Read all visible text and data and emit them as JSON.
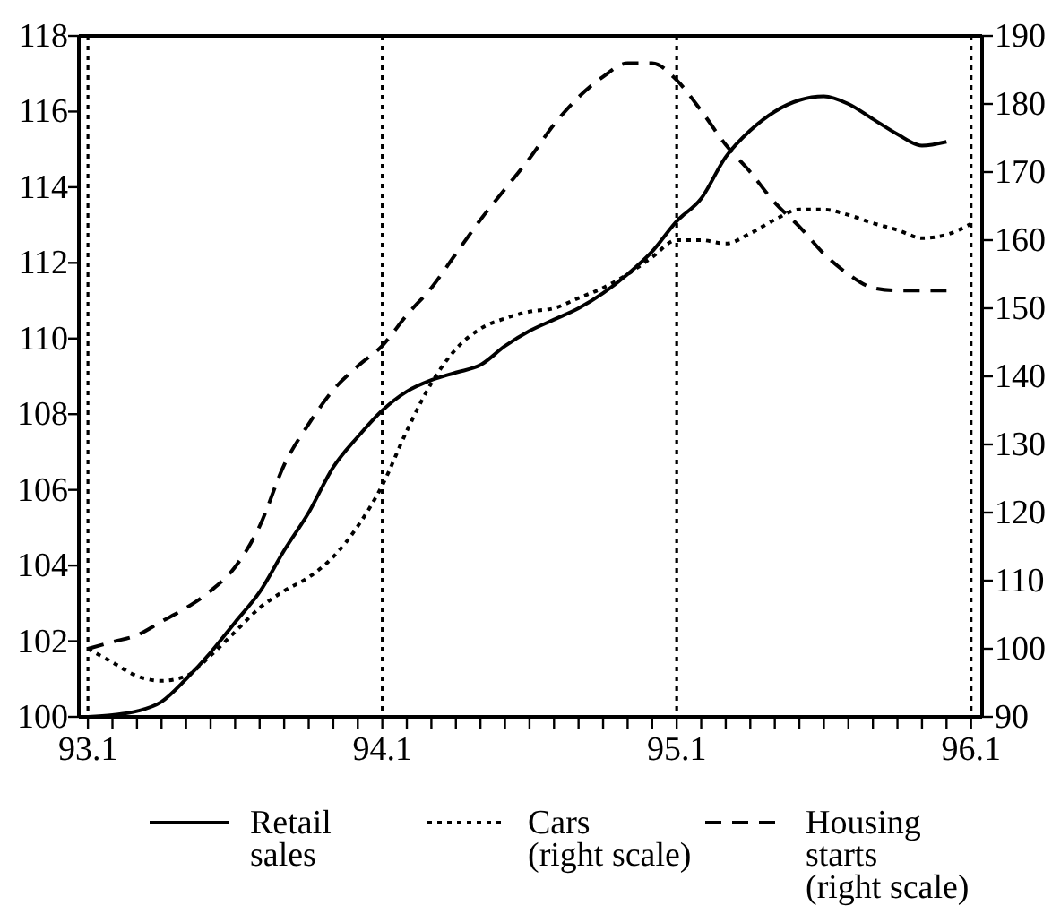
{
  "chart_data": {
    "type": "line",
    "categories": [
      "93.1",
      null,
      null,
      null,
      null,
      null,
      null,
      null,
      null,
      null,
      null,
      null,
      "94.1",
      null,
      null,
      null,
      null,
      null,
      null,
      null,
      null,
      null,
      null,
      null,
      "95.1",
      null,
      null,
      null,
      null,
      null,
      null,
      null,
      null,
      null,
      null,
      null,
      "96.1"
    ],
    "series": [
      {
        "name": "Retail sales",
        "color": "#000000",
        "line_style": "solid",
        "values": [
          100.0,
          100.05,
          100.15,
          100.4,
          101.0,
          101.7,
          102.5,
          103.3,
          104.4,
          105.4,
          106.6,
          107.4,
          108.1,
          108.6,
          108.9,
          109.1,
          109.3,
          109.8,
          110.2,
          110.5,
          110.8,
          111.2,
          111.7,
          112.3,
          113.1,
          113.7,
          114.8,
          115.5,
          116.0,
          116.3,
          116.4,
          116.2,
          115.8,
          115.4,
          115.1,
          115.2,
          null
        ]
      },
      {
        "name": "Cars (right scale)",
        "color": "#000000",
        "line_style": "dotted",
        "axis": "y2",
        "values": [
          100,
          98,
          96,
          95.3,
          96,
          99,
          102.5,
          106,
          108.5,
          110.5,
          113.5,
          118,
          124,
          132,
          139,
          144,
          147,
          148.5,
          149.5,
          150,
          151.5,
          153,
          155,
          157.5,
          160,
          160,
          159.5,
          161,
          163,
          164.5,
          164.5,
          163.7,
          162.5,
          161.5,
          160.3,
          160.8,
          162.4
        ]
      },
      {
        "name": "Housing starts (right scale)",
        "color": "#000000",
        "line_style": "dashed",
        "axis": "y2",
        "values": [
          100,
          101,
          102,
          104,
          106,
          108.5,
          112,
          118,
          127,
          133,
          138,
          141.5,
          144.5,
          149,
          153,
          158,
          163,
          167.5,
          172,
          177,
          181,
          184,
          186,
          186,
          183.5,
          179,
          174,
          170,
          165.5,
          162,
          158,
          155,
          153,
          152.6,
          152.6,
          152.6,
          null
        ]
      }
    ],
    "ylim": [
      100,
      118
    ],
    "yticks": [
      100,
      102,
      104,
      106,
      108,
      110,
      112,
      114,
      116,
      118
    ],
    "y2lim": [
      90,
      190
    ],
    "y2ticks": [
      90,
      100,
      110,
      120,
      130,
      140,
      150,
      160,
      170,
      180,
      190
    ],
    "ref_lines": [
      {
        "axis": "x",
        "value": "93.1",
        "line_style": "dotted"
      },
      {
        "axis": "x",
        "value": "94.1",
        "line_style": "dotted"
      },
      {
        "axis": "x",
        "value": "95.1",
        "line_style": "dotted"
      },
      {
        "axis": "x",
        "value": "96.1",
        "line_style": "dotted"
      }
    ],
    "grid": false,
    "legend": "bottom",
    "marker": "none"
  }
}
